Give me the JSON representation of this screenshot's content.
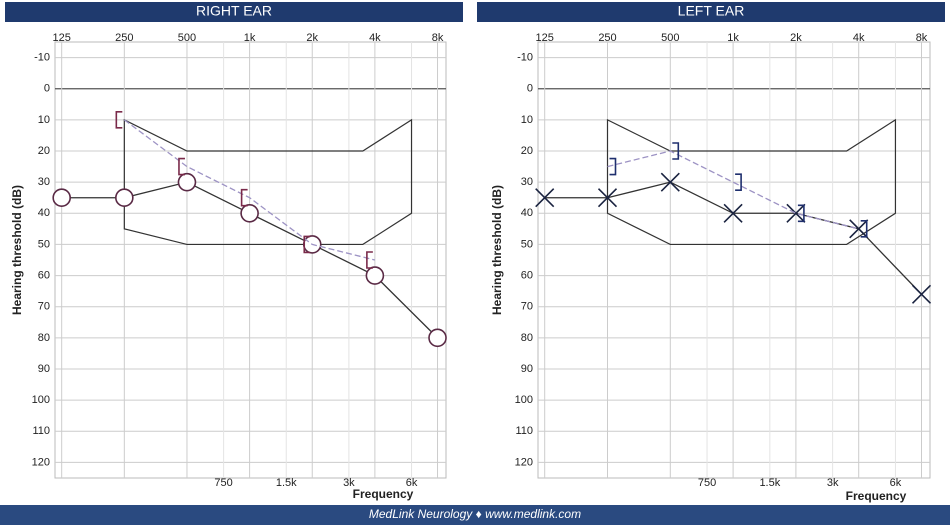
{
  "chart_data": [
    {
      "type": "line",
      "title": "RIGHT EAR",
      "xlabel": "Frequency",
      "ylabel": "Hearing threshold (dB)",
      "xscale": "log",
      "y_inverted": true,
      "xlim": [
        120,
        8500
      ],
      "ylim": [
        -15,
        125
      ],
      "xticks": [
        125,
        250,
        500,
        {
          "value": 1000,
          "label": "1k"
        },
        {
          "value": 2000,
          "label": "2k"
        },
        {
          "value": 4000,
          "label": "4k"
        },
        {
          "value": 8000,
          "label": "8k"
        }
      ],
      "xticks_minor": [
        750,
        {
          "value": 1500,
          "label": "1.5k"
        },
        {
          "value": 3000,
          "label": "3k"
        },
        {
          "value": 6000,
          "label": "6k"
        }
      ],
      "yticks": [
        -10,
        0,
        10,
        20,
        30,
        40,
        50,
        60,
        70,
        80,
        90,
        100,
        110,
        120
      ],
      "grid": true,
      "speech_region": {
        "x": [
          250,
          500,
          3500,
          6000,
          6000,
          3500,
          500,
          250
        ],
        "y": [
          10,
          20,
          20,
          10,
          40,
          50,
          50,
          45
        ],
        "color": "#333333"
      },
      "series": [
        {
          "marker": "circle",
          "color": "#5a2a45",
          "line_color": "#333333",
          "line_style": "solid",
          "x": [
            125,
            250,
            500,
            1000,
            2000,
            4000,
            8000
          ],
          "values": [
            35,
            35,
            30,
            40,
            50,
            60,
            80
          ]
        },
        {
          "marker": "bracket-left",
          "color": "#7a2a4a",
          "line_color": "#9d93c4",
          "line_style": "dashed",
          "x": [
            250,
            500,
            1000,
            2000,
            4000
          ],
          "values": [
            10,
            25,
            35,
            50,
            55
          ]
        }
      ]
    },
    {
      "type": "line",
      "title": "LEFT EAR",
      "xlabel": "Frequency",
      "ylabel": "Hearing threshold (dB)",
      "xscale": "log",
      "y_inverted": true,
      "xlim": [
        120,
        8500
      ],
      "ylim": [
        -15,
        125
      ],
      "xticks": [
        125,
        250,
        500,
        {
          "value": 1000,
          "label": "1k"
        },
        {
          "value": 2000,
          "label": "2k"
        },
        {
          "value": 4000,
          "label": "4k"
        },
        {
          "value": 8000,
          "label": "8k"
        }
      ],
      "xticks_minor": [
        750,
        {
          "value": 1500,
          "label": "1.5k"
        },
        {
          "value": 3000,
          "label": "3k"
        },
        {
          "value": 6000,
          "label": "6k"
        }
      ],
      "yticks": [
        -10,
        0,
        10,
        20,
        30,
        40,
        50,
        60,
        70,
        80,
        90,
        100,
        110,
        120
      ],
      "grid": true,
      "speech_region": {
        "x": [
          250,
          500,
          3500,
          6000,
          6000,
          3500,
          500,
          250
        ],
        "y": [
          10,
          20,
          20,
          10,
          40,
          50,
          50,
          40
        ],
        "color": "#333333"
      },
      "series": [
        {
          "marker": "x",
          "color": "#1a2340",
          "line_color": "#333333",
          "line_style": "solid",
          "x": [
            125,
            250,
            500,
            1000,
            2000,
            4000,
            8000
          ],
          "values": [
            35,
            35,
            30,
            40,
            40,
            45,
            66
          ]
        },
        {
          "marker": "bracket-right",
          "color": "#1f2f6e",
          "line_color": "#9d93c4",
          "line_style": "dashed",
          "x": [
            250,
            500,
            1000,
            2000,
            4000
          ],
          "values": [
            25,
            20,
            30,
            40,
            45
          ]
        }
      ]
    }
  ],
  "footer": "MedLink Neurology  ♦  www.medlink.com"
}
